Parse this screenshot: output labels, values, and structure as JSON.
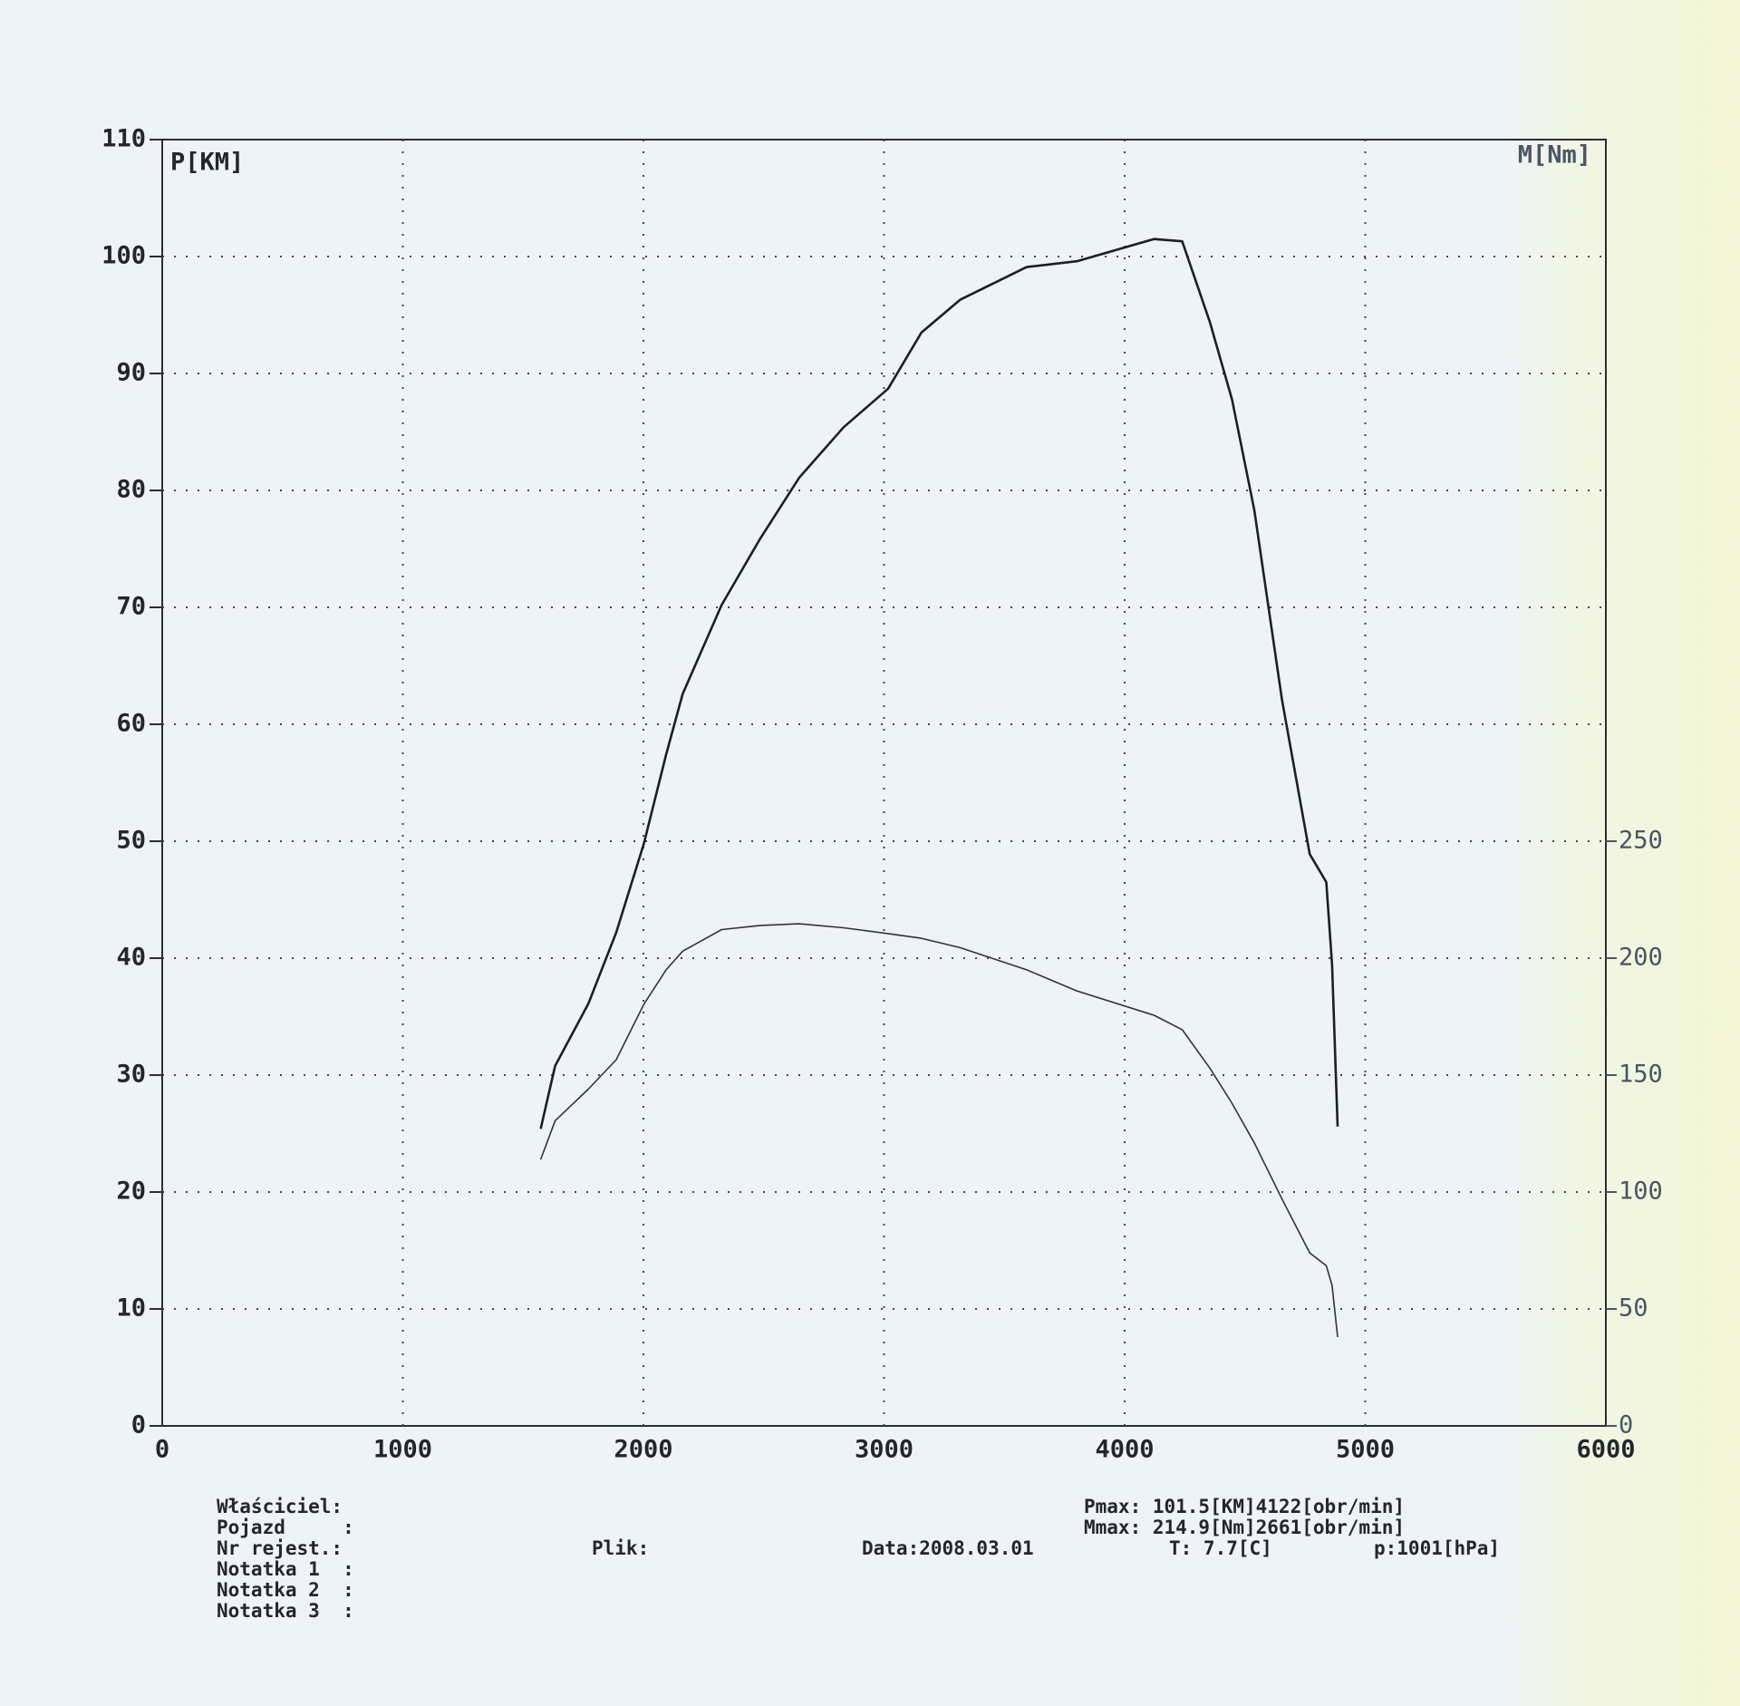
{
  "chart_data": {
    "type": "line",
    "ylabel": "P[KM]",
    "y2label": "M[Nm]",
    "x": [
      1573,
      1633,
      1771,
      1887,
      2002,
      2094,
      2163,
      2325,
      2486,
      2648,
      2832,
      3017,
      3155,
      3316,
      3593,
      3801,
      4122,
      4239,
      4354,
      4446,
      4539,
      4654,
      4769,
      4838,
      4862,
      4885
    ],
    "series": [
      {
        "color": "#1c1f26",
        "values": [
          25.4,
          30.8,
          36.1,
          42.2,
          49.8,
          57.4,
          62.6,
          70.2,
          75.9,
          81.1,
          85.4,
          88.7,
          93.5,
          96.3,
          99.1,
          99.6,
          101.5,
          101.3,
          94.4,
          87.8,
          78.3,
          62.1,
          48.9,
          46.5,
          39.4,
          25.6
        ]
      },
      {
        "color": "#2e3340",
        "axis": "y2",
        "values": [
          113.9,
          130.5,
          144,
          156.6,
          180.3,
          195,
          203,
          212.2,
          214,
          214.7,
          213,
          210.5,
          208.5,
          204.5,
          195,
          186,
          175.6,
          169.4,
          153,
          138,
          121,
          97,
          74,
          68.5,
          60,
          38
        ]
      }
    ],
    "xlim": [
      0,
      6000
    ],
    "xticks": [
      0,
      1000,
      2000,
      3000,
      4000,
      5000,
      6000
    ],
    "ylim": [
      0,
      110
    ],
    "yticks": [
      0,
      10,
      20,
      30,
      40,
      50,
      60,
      70,
      80,
      90,
      100,
      110
    ],
    "y2lim": [
      0,
      550
    ],
    "y2ticks": [
      0,
      50,
      100,
      150,
      200,
      250
    ],
    "grid": true
  },
  "footer": {
    "left": [
      "Właściciel:",
      "Pojazd     :",
      "Nr rejest.:",
      "Notatka 1  :",
      "Notatka 2  :",
      "Notatka 3  :"
    ],
    "file": "Plik:",
    "date": "Data:2008.03.01",
    "temp": "T: 7.7[C]",
    "pressure": "p:1001[hPa]",
    "pmax": "Pmax: 101.5[KM]4122[obr/min]",
    "mmax": "Mmax: 214.9[Nm]2661[obr/min]"
  }
}
